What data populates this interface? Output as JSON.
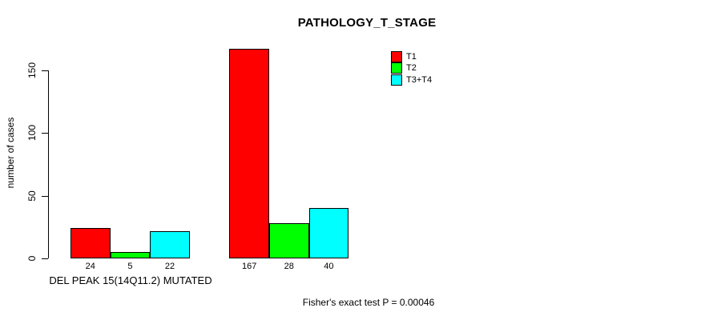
{
  "chart_data": {
    "type": "bar",
    "title": "PATHOLOGY_T_STAGE",
    "ylabel": "number of cases",
    "xlabel": "",
    "ylim": [
      0,
      170
    ],
    "yticks": [
      0,
      50,
      100,
      150
    ],
    "grid": false,
    "legend_position": "top-right",
    "categories": [
      "DEL PEAK 15(14Q11.2) MUTATED",
      ""
    ],
    "series": [
      {
        "name": "T1",
        "color": "#ff0000",
        "values": [
          24,
          167
        ]
      },
      {
        "name": "T2",
        "color": "#00ff00",
        "values": [
          5,
          28
        ]
      },
      {
        "name": "T3+T4",
        "color": "#00ffff",
        "values": [
          22,
          40
        ]
      }
    ],
    "bar_value_labels": [
      [
        24,
        5,
        22
      ],
      [
        167,
        28,
        40
      ]
    ],
    "annotation": "Fisher's exact test P = 0.00046"
  },
  "colors": {
    "background": "#ffffff",
    "axis": "#000000",
    "bar_border": "#000000",
    "text": "#000000"
  }
}
